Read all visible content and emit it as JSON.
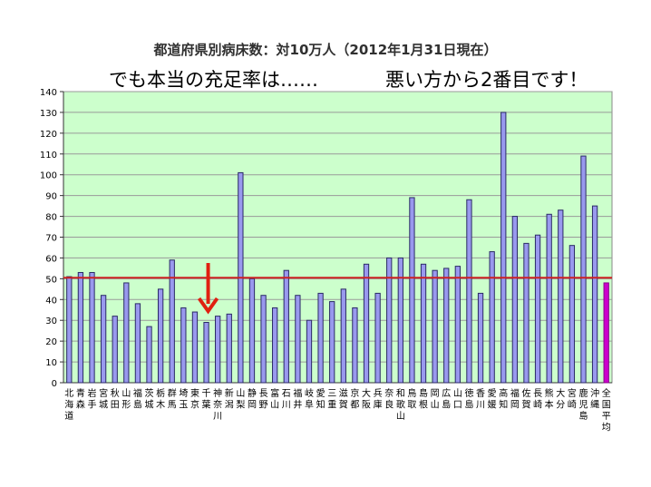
{
  "title": "都道府県別病床数：対10万人（2012年1月31日現在）",
  "annotation_left": "でも本当の充足率は……",
  "annotation_right": "悪い方から2番目です！",
  "colors": {
    "plot_bg": "#ccffcc",
    "bar": "#9999ee",
    "bar_stroke": "#2a2a66",
    "average_bar": "#cc00cc",
    "reference_line": "#cc2222",
    "arrow": "#e02010",
    "grid": "#9a9a9a"
  },
  "chart_data": {
    "type": "bar",
    "title": "都道府県別病床数：対10万人（2012年1月31日現在）",
    "xlabel": "",
    "ylabel": "",
    "ylim": [
      0,
      140
    ],
    "yticks": [
      0,
      10,
      20,
      30,
      40,
      50,
      60,
      70,
      80,
      90,
      100,
      110,
      120,
      130,
      140
    ],
    "grid": true,
    "reference_line": 50.5,
    "highlight_category": "千葉",
    "categories": [
      "北海道",
      "青森",
      "岩手",
      "宮城",
      "秋田",
      "山形",
      "福島",
      "茨城",
      "栃木",
      "群馬",
      "埼玉",
      "東京",
      "千葉",
      "神奈川",
      "新潟",
      "山梨",
      "静岡",
      "長野",
      "富山",
      "石川",
      "福井",
      "岐阜",
      "愛知",
      "三重",
      "滋賀",
      "京都",
      "大阪",
      "兵庫",
      "奈良",
      "和歌山",
      "鳥取",
      "島根",
      "岡山",
      "広島",
      "山口",
      "徳島",
      "香川",
      "愛媛",
      "高知",
      "福岡",
      "佐賀",
      "長崎",
      "熊本",
      "大分",
      "宮崎",
      "鹿児島",
      "沖縄",
      "全国平均"
    ],
    "values": [
      51,
      53,
      53,
      42,
      32,
      48,
      38,
      27,
      45,
      59,
      36,
      34,
      29,
      32,
      33,
      101,
      50,
      42,
      36,
      54,
      42,
      30,
      43,
      39,
      45,
      36,
      57,
      43,
      60,
      60,
      89,
      57,
      54,
      55,
      56,
      88,
      43,
      63,
      130,
      80,
      67,
      71,
      81,
      83,
      66,
      109,
      85,
      48
    ]
  }
}
